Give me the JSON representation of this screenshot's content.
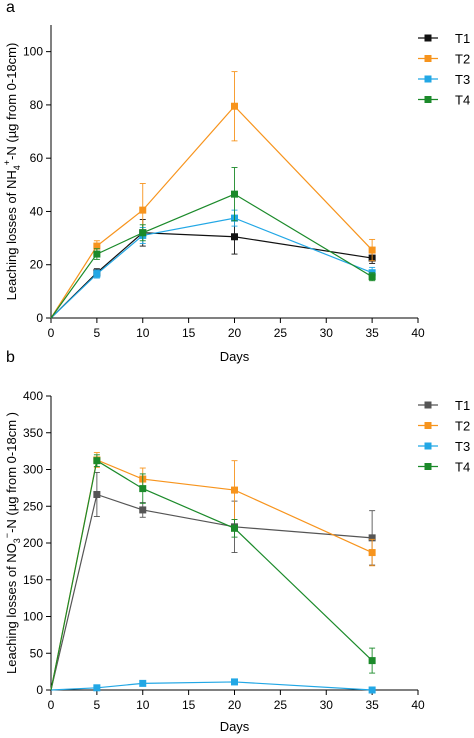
{
  "colors": {
    "T1_a": "#111111",
    "T1_b": "#555555",
    "T2": "#f7941d",
    "T3": "#22a7e5",
    "T4": "#1b8a2a",
    "axis": "#000000"
  },
  "chart_data": [
    {
      "panel": "a",
      "type": "line",
      "xlabel": "Days",
      "ylabel_parts": [
        "Leaching losses of NH",
        "4",
        "+",
        "-N (µg from 0-18cm)"
      ],
      "xlim": [
        0,
        40
      ],
      "ylim": [
        0,
        110
      ],
      "xticks": [
        0,
        5,
        10,
        15,
        20,
        25,
        30,
        35,
        40
      ],
      "yticks": [
        0,
        20,
        40,
        60,
        80,
        100
      ],
      "legend_position": "top-right",
      "x": [
        0,
        5,
        10,
        20,
        35
      ],
      "series": [
        {
          "name": "T1",
          "color_key": "T1_a",
          "values": [
            0,
            17,
            32,
            30.5,
            22.5
          ],
          "errors": [
            0,
            1.5,
            5,
            6.5,
            2
          ]
        },
        {
          "name": "T2",
          "color_key": "T2",
          "values": [
            0,
            27,
            40.5,
            79.5,
            25.5
          ],
          "errors": [
            0,
            2,
            10,
            13,
            4
          ]
        },
        {
          "name": "T3",
          "color_key": "T3",
          "values": [
            0,
            16.5,
            31,
            37.5,
            17
          ],
          "errors": [
            0,
            1.5,
            3,
            3,
            2
          ]
        },
        {
          "name": "T4",
          "color_key": "T4",
          "values": [
            0,
            24,
            32,
            46.5,
            15.5
          ],
          "errors": [
            0,
            2,
            3,
            10,
            1.5
          ]
        }
      ]
    },
    {
      "panel": "b",
      "type": "line",
      "xlabel": "Days",
      "ylabel_parts": [
        "Leaching losses of NO",
        "3",
        "−",
        "-N (µg from 0-18cm )"
      ],
      "xlim": [
        0,
        40
      ],
      "ylim": [
        0,
        400
      ],
      "xticks": [
        0,
        5,
        10,
        15,
        20,
        25,
        30,
        35,
        40
      ],
      "yticks": [
        0,
        50,
        100,
        150,
        200,
        250,
        300,
        350,
        400
      ],
      "legend_position": "top-right",
      "x": [
        0,
        5,
        10,
        20,
        35
      ],
      "series": [
        {
          "name": "T1",
          "color_key": "T1_b",
          "values": [
            0,
            266,
            245,
            222,
            207
          ],
          "errors": [
            0,
            30,
            10,
            35,
            37
          ]
        },
        {
          "name": "T2",
          "color_key": "T2",
          "values": [
            0,
            313,
            287,
            272,
            187
          ],
          "errors": [
            0,
            10,
            15,
            40,
            18
          ]
        },
        {
          "name": "T3",
          "color_key": "T3",
          "values": [
            0,
            3,
            9,
            11,
            0
          ],
          "errors": [
            0,
            1,
            2,
            2,
            1
          ]
        },
        {
          "name": "T4",
          "color_key": "T4",
          "values": [
            0,
            312,
            274,
            220,
            40
          ],
          "errors": [
            0,
            8,
            20,
            12,
            17
          ]
        }
      ]
    }
  ]
}
